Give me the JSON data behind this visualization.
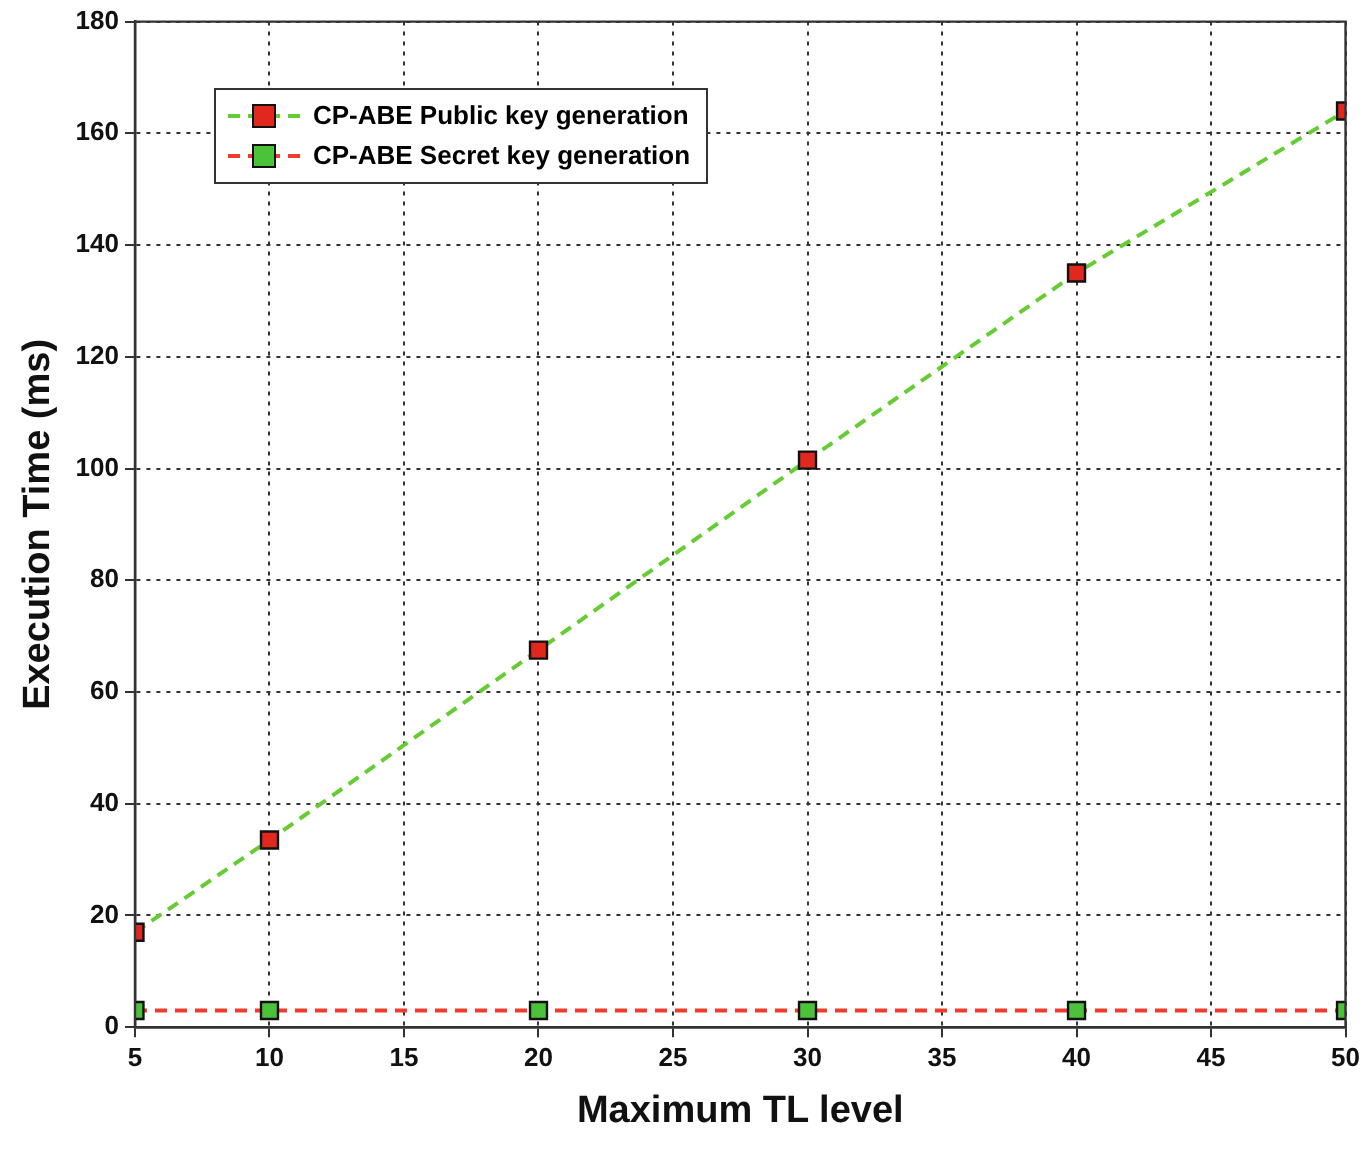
{
  "chart_data": {
    "type": "line",
    "xlabel": "Maximum TL level",
    "ylabel": "Execution Time (ms)",
    "x": [
      5,
      10,
      20,
      30,
      40,
      50
    ],
    "series": [
      {
        "name": "CP-ABE Public key generation",
        "color": "#66cc33",
        "colors": [
          "#e0281e",
          "#e0281e",
          "#e0281e",
          "#e0281e",
          "#e0281e",
          "#e0281e"
        ],
        "values": [
          17,
          33.5,
          67.5,
          101.5,
          135,
          164
        ]
      },
      {
        "name": "CP-ABE Secret key generation",
        "color": "#f03c2c",
        "colors": [
          "#4cc23a",
          "#4cc23a",
          "#4cc23a",
          "#4cc23a",
          "#4cc23a",
          "#4cc23a"
        ],
        "values": [
          3,
          3,
          3,
          3,
          3,
          3
        ]
      }
    ],
    "xlim": [
      5,
      50
    ],
    "xticks": [
      5,
      10,
      15,
      20,
      25,
      30,
      35,
      40,
      45,
      50
    ],
    "ylim": [
      0,
      180
    ],
    "yticks": [
      0,
      20,
      40,
      60,
      80,
      100,
      120,
      140,
      160,
      180
    ],
    "grid": true,
    "legend": "top left",
    "marker": "square",
    "line_style": "dashed"
  }
}
